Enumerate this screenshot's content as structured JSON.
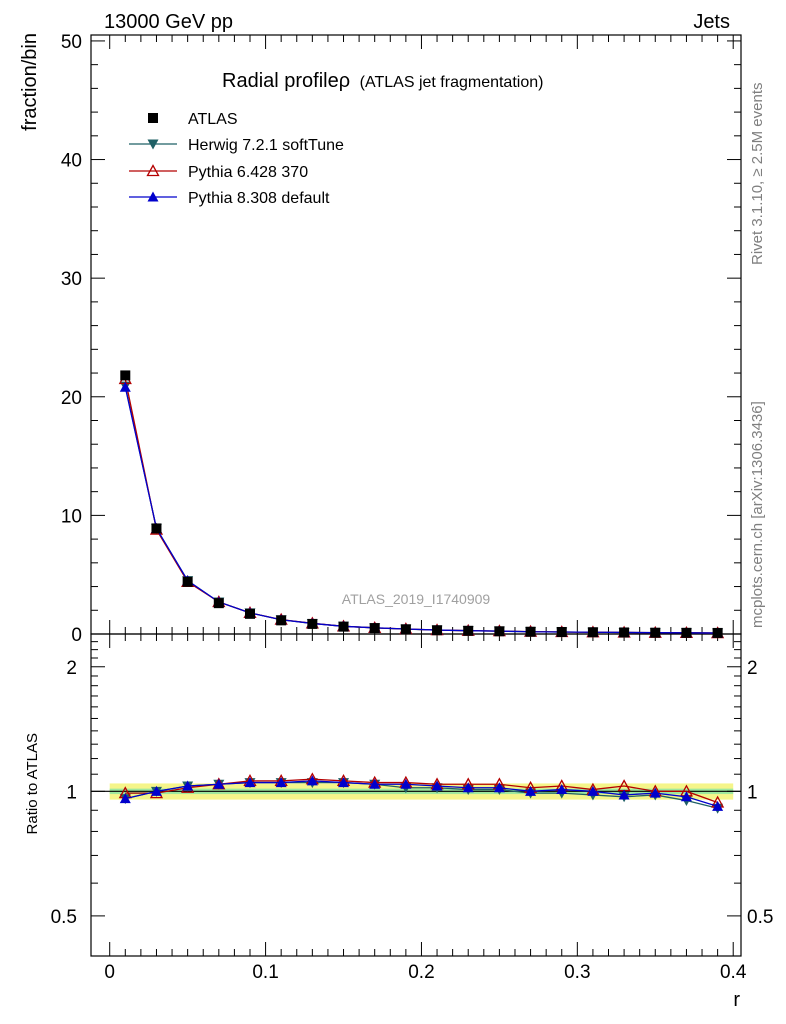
{
  "header": {
    "left": "13000 GeV pp",
    "right": "Jets"
  },
  "side_labels": {
    "rivet": "Rivet 3.1.10, ≥ 2.5M events",
    "mcplots": "mcplots.cern.ch [arXiv:1306.3436]"
  },
  "chart_data": {
    "type": "line",
    "title": "Radial profileρ (ATLAS jet fragmentation)",
    "title_main": "Radial profileρ",
    "title_sub": "(ATLAS jet fragmentation)",
    "watermark": "ATLAS_2019_I1740909",
    "xlabel": "r",
    "ylabel": "fraction/bin",
    "ratio_ylabel": "Ratio to ATLAS",
    "xlim": [
      -0.012,
      0.405
    ],
    "ylim": [
      0,
      50.5
    ],
    "ratio_ylim": [
      0.4,
      2.4
    ],
    "ratio_scale": "log",
    "x_ticks": [
      "0",
      "0.1",
      "0.2",
      "0.3",
      "0.4"
    ],
    "x_tick_values": [
      0,
      0.1,
      0.2,
      0.3,
      0.4
    ],
    "y_ticks": [
      "0",
      "10",
      "20",
      "30",
      "40",
      "50"
    ],
    "y_tick_values": [
      0,
      10,
      20,
      30,
      40,
      50
    ],
    "ratio_ticks": [
      "0.5",
      "1",
      "2"
    ],
    "ratio_tick_values": [
      0.5,
      1,
      2
    ],
    "legend_position": "top-left",
    "x": [
      0.01,
      0.03,
      0.05,
      0.07,
      0.09,
      0.11,
      0.13,
      0.15,
      0.17,
      0.19,
      0.21,
      0.23,
      0.25,
      0.27,
      0.29,
      0.31,
      0.33,
      0.35,
      0.37,
      0.39
    ],
    "series": [
      {
        "name": "ATLAS",
        "color": "#000000",
        "marker": "square",
        "values": [
          21.8,
          8.9,
          4.4,
          2.6,
          1.7,
          1.15,
          0.85,
          0.62,
          0.5,
          0.4,
          0.32,
          0.27,
          0.23,
          0.19,
          0.17,
          0.15,
          0.13,
          0.11,
          0.1,
          0.09
        ],
        "ratio": [
          1,
          1,
          1,
          1,
          1,
          1,
          1,
          1,
          1,
          1,
          1,
          1,
          1,
          1,
          1,
          1,
          1,
          1,
          1,
          1
        ]
      },
      {
        "name": "Herwig 7.2.1 softTune",
        "color": "#1f6066",
        "marker": "triangle-down",
        "values": [
          20.9,
          8.9,
          4.5,
          2.7,
          1.78,
          1.2,
          0.89,
          0.65,
          0.52,
          0.41,
          0.33,
          0.28,
          0.24,
          0.19,
          0.17,
          0.15,
          0.13,
          0.11,
          0.1,
          0.08
        ],
        "ratio": [
          0.96,
          1.0,
          1.03,
          1.04,
          1.05,
          1.05,
          1.05,
          1.05,
          1.04,
          1.02,
          1.02,
          1.01,
          1.01,
          0.99,
          0.99,
          0.98,
          0.97,
          0.98,
          0.95,
          0.91
        ]
      },
      {
        "name": "Pythia 6.428 370",
        "color": "#b40000",
        "marker": "triangle-open",
        "values": [
          21.5,
          8.8,
          4.4,
          2.7,
          1.78,
          1.21,
          0.9,
          0.65,
          0.52,
          0.42,
          0.33,
          0.28,
          0.24,
          0.2,
          0.17,
          0.15,
          0.13,
          0.11,
          0.1,
          0.08
        ],
        "ratio": [
          0.99,
          0.99,
          1.02,
          1.04,
          1.06,
          1.06,
          1.07,
          1.06,
          1.05,
          1.05,
          1.04,
          1.04,
          1.04,
          1.02,
          1.03,
          1.01,
          1.03,
          1.0,
          1.0,
          0.94
        ]
      },
      {
        "name": "Pythia 8.308 default",
        "color": "#0000cc",
        "marker": "triangle-up",
        "values": [
          20.8,
          8.9,
          4.5,
          2.7,
          1.78,
          1.2,
          0.89,
          0.65,
          0.52,
          0.42,
          0.33,
          0.28,
          0.24,
          0.19,
          0.17,
          0.15,
          0.13,
          0.11,
          0.1,
          0.08
        ],
        "ratio": [
          0.96,
          1.0,
          1.03,
          1.04,
          1.05,
          1.05,
          1.06,
          1.05,
          1.04,
          1.04,
          1.03,
          1.02,
          1.02,
          1.0,
          1.01,
          1.0,
          0.98,
          0.99,
          0.97,
          0.92
        ]
      }
    ],
    "band_green": [
      0.985,
      1.015
    ],
    "band_yellow": [
      0.955,
      1.045
    ]
  }
}
